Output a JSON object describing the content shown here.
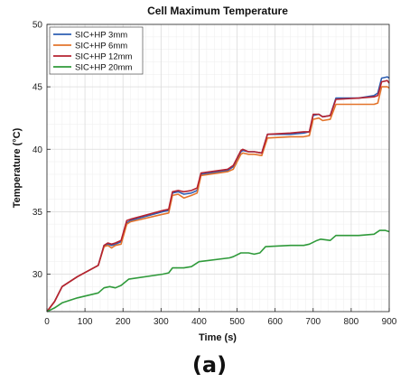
{
  "caption": "(a)",
  "chart_data": {
    "type": "line",
    "title": "Cell Maximum Temperature",
    "xlabel": "Time (s)",
    "ylabel": "Temperature (°C)",
    "xlim": [
      0,
      900
    ],
    "ylim": [
      27,
      50
    ],
    "xticks": [
      0,
      100,
      200,
      300,
      400,
      500,
      600,
      700,
      800,
      900
    ],
    "yticks": [
      30,
      35,
      40,
      45,
      50
    ],
    "grid": "on (major and minor)",
    "legend_position": "top-left",
    "series": [
      {
        "name": "SIC+HP 3mm",
        "color": "#2e5fb3",
        "x": [
          0,
          20,
          40,
          80,
          135,
          150,
          160,
          170,
          180,
          195,
          210,
          220,
          305,
          320,
          330,
          345,
          360,
          380,
          395,
          405,
          475,
          490,
          510,
          515,
          530,
          545,
          565,
          580,
          640,
          675,
          690,
          700,
          715,
          725,
          745,
          760,
          820,
          860,
          870,
          880,
          895,
          900
        ],
        "y": [
          27.0,
          27.8,
          29.0,
          29.8,
          30.7,
          32.3,
          32.4,
          32.3,
          32.4,
          32.6,
          34.1,
          34.3,
          35.0,
          35.1,
          36.5,
          36.6,
          36.4,
          36.5,
          36.7,
          38.0,
          38.3,
          38.6,
          39.8,
          39.9,
          39.8,
          39.8,
          39.7,
          41.2,
          41.2,
          41.3,
          41.4,
          42.7,
          42.8,
          42.6,
          42.7,
          44.1,
          44.1,
          44.3,
          44.5,
          45.7,
          45.8,
          45.7
        ]
      },
      {
        "name": "SIC+HP 6mm",
        "color": "#e3742b",
        "x": [
          0,
          20,
          40,
          80,
          135,
          150,
          160,
          170,
          180,
          195,
          210,
          220,
          305,
          320,
          330,
          345,
          360,
          380,
          395,
          405,
          475,
          490,
          510,
          515,
          530,
          545,
          565,
          580,
          640,
          675,
          690,
          700,
          715,
          725,
          745,
          760,
          820,
          860,
          870,
          880,
          895,
          900
        ],
        "y": [
          27.0,
          27.8,
          29.0,
          29.8,
          30.7,
          32.2,
          32.3,
          32.1,
          32.3,
          32.4,
          34.0,
          34.2,
          34.8,
          34.9,
          36.3,
          36.4,
          36.1,
          36.3,
          36.5,
          37.9,
          38.2,
          38.4,
          39.6,
          39.7,
          39.6,
          39.6,
          39.5,
          40.9,
          41.0,
          41.0,
          41.1,
          42.4,
          42.5,
          42.3,
          42.4,
          43.6,
          43.6,
          43.6,
          43.7,
          45.0,
          45.0,
          44.9
        ]
      },
      {
        "name": "SIC+HP 12mm",
        "color": "#b52230",
        "x": [
          0,
          20,
          40,
          80,
          135,
          150,
          160,
          170,
          180,
          195,
          210,
          220,
          305,
          320,
          330,
          345,
          360,
          380,
          395,
          405,
          475,
          490,
          510,
          515,
          530,
          545,
          565,
          580,
          640,
          675,
          690,
          700,
          715,
          725,
          745,
          760,
          820,
          860,
          870,
          880,
          895,
          900
        ],
        "y": [
          27.0,
          27.8,
          29.0,
          29.8,
          30.7,
          32.3,
          32.5,
          32.4,
          32.5,
          32.7,
          34.3,
          34.4,
          35.1,
          35.2,
          36.6,
          36.7,
          36.6,
          36.7,
          36.9,
          38.1,
          38.4,
          38.7,
          39.9,
          40.0,
          39.8,
          39.8,
          39.7,
          41.2,
          41.3,
          41.4,
          41.4,
          42.8,
          42.8,
          42.6,
          42.7,
          44.0,
          44.1,
          44.2,
          44.3,
          45.4,
          45.5,
          45.3
        ]
      },
      {
        "name": "SIC+HP 20mm",
        "color": "#2f9a3a",
        "x": [
          0,
          20,
          40,
          80,
          135,
          150,
          165,
          180,
          195,
          215,
          305,
          320,
          330,
          345,
          360,
          380,
          400,
          480,
          490,
          510,
          515,
          530,
          545,
          560,
          575,
          640,
          675,
          690,
          710,
          720,
          745,
          760,
          820,
          860,
          875,
          890,
          900
        ],
        "y": [
          27.0,
          27.3,
          27.7,
          28.1,
          28.5,
          28.9,
          29.0,
          28.9,
          29.1,
          29.6,
          30.0,
          30.1,
          30.5,
          30.5,
          30.5,
          30.6,
          31.0,
          31.3,
          31.4,
          31.7,
          31.7,
          31.7,
          31.6,
          31.7,
          32.2,
          32.3,
          32.3,
          32.4,
          32.7,
          32.8,
          32.7,
          33.1,
          33.1,
          33.2,
          33.5,
          33.5,
          33.4
        ]
      }
    ]
  }
}
